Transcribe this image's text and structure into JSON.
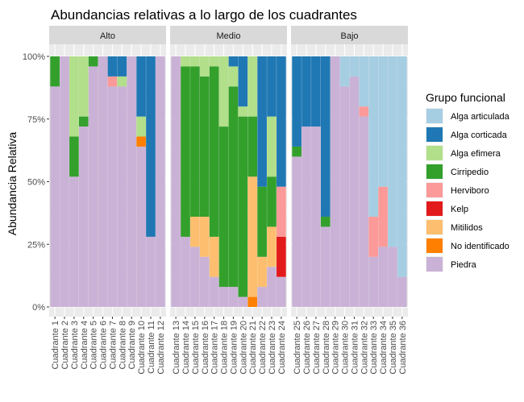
{
  "chart_data": {
    "type": "bar",
    "stacked": "percent",
    "title": "Abundancias relativas a lo largo de los cuadrantes",
    "xlabel": "",
    "ylabel": "Abundancia Relativa",
    "ylim": [
      0,
      1
    ],
    "y_ticks": [
      "0%",
      "25%",
      "50%",
      "75%",
      "100%"
    ],
    "grid": true,
    "legend_position": "right",
    "legend_title": "Grupo funcional",
    "groups": [
      {
        "name": "Alga articulada",
        "color": "#A6CEE3"
      },
      {
        "name": "Alga corticada",
        "color": "#1F78B4"
      },
      {
        "name": "Alga efimera",
        "color": "#B2DF8A"
      },
      {
        "name": "Cirripedio",
        "color": "#33A02C"
      },
      {
        "name": "Herviboro",
        "color": "#FB9A99"
      },
      {
        "name": "Kelp",
        "color": "#E31A1C"
      },
      {
        "name": "Mitilidos",
        "color": "#FDBF6F"
      },
      {
        "name": "No identificado",
        "color": "#FF7F00"
      },
      {
        "name": "Piedra",
        "color": "#CAB2D6"
      }
    ],
    "facets": [
      {
        "label": "Alto",
        "bars": [
          {
            "name": "Cuadrante 1",
            "values": [
              0,
              0,
              0,
              0.12,
              0,
              0,
              0,
              0,
              0.88
            ]
          },
          {
            "name": "Cuadrante 2",
            "values": [
              0,
              0,
              0,
              0,
              0,
              0,
              0,
              0,
              1.0
            ]
          },
          {
            "name": "Cuadrante 3",
            "values": [
              0,
              0,
              0.32,
              0.16,
              0,
              0,
              0,
              0,
              0.52
            ]
          },
          {
            "name": "Cuadrante 4",
            "values": [
              0,
              0,
              0.24,
              0.04,
              0,
              0,
              0,
              0,
              0.72
            ]
          },
          {
            "name": "Cuadrante 5",
            "values": [
              0,
              0,
              0,
              0.04,
              0,
              0,
              0,
              0,
              0.96
            ]
          },
          {
            "name": "Cuadrante 6",
            "values": [
              0,
              0,
              0,
              0,
              0,
              0,
              0,
              0,
              1.0
            ]
          },
          {
            "name": "Cuadrante 7",
            "values": [
              0,
              0.08,
              0,
              0,
              0.04,
              0,
              0,
              0,
              0.88
            ]
          },
          {
            "name": "Cuadrante 8",
            "values": [
              0,
              0.08,
              0.04,
              0,
              0,
              0,
              0,
              0,
              0.88
            ]
          },
          {
            "name": "Cuadrante 9",
            "values": [
              0,
              0,
              0,
              0,
              0,
              0,
              0,
              0,
              1.0
            ]
          },
          {
            "name": "Cuadrante 10",
            "values": [
              0,
              0.24,
              0.08,
              0,
              0,
              0,
              0,
              0.04,
              0.64
            ]
          },
          {
            "name": "Cuadrante 11",
            "values": [
              0,
              0.72,
              0,
              0,
              0,
              0,
              0,
              0,
              0.28
            ]
          },
          {
            "name": "Cuadrante 12",
            "values": [
              0,
              0,
              0,
              0,
              0,
              0,
              0,
              0,
              1.0
            ]
          }
        ]
      },
      {
        "label": "Medio",
        "bars": [
          {
            "name": "Cuadrante 13",
            "values": [
              0,
              0,
              0,
              0,
              0,
              0,
              0,
              0,
              1.0
            ]
          },
          {
            "name": "Cuadrante 14",
            "values": [
              0,
              0,
              0.04,
              0.68,
              0,
              0,
              0,
              0,
              0.28
            ]
          },
          {
            "name": "Cuadrante 15",
            "values": [
              0,
              0,
              0.04,
              0.6,
              0,
              0,
              0.12,
              0,
              0.24
            ]
          },
          {
            "name": "Cuadrante 16",
            "values": [
              0,
              0,
              0.08,
              0.56,
              0,
              0,
              0.16,
              0,
              0.2
            ]
          },
          {
            "name": "Cuadrante 17",
            "values": [
              0,
              0,
              0.04,
              0.68,
              0,
              0,
              0.16,
              0,
              0.12
            ]
          },
          {
            "name": "Cuadrante 18",
            "values": [
              0,
              0,
              0.28,
              0.64,
              0,
              0,
              0,
              0,
              0.08
            ]
          },
          {
            "name": "Cuadrante 19",
            "values": [
              0,
              0.04,
              0.08,
              0.8,
              0,
              0,
              0,
              0,
              0.08
            ]
          },
          {
            "name": "Cuadrante 20",
            "values": [
              0,
              0.2,
              0.04,
              0.72,
              0,
              0,
              0,
              0,
              0.04
            ]
          },
          {
            "name": "Cuadrante 21",
            "values": [
              0,
              0,
              0.24,
              0.24,
              0,
              0,
              0.48,
              0.04,
              0
            ]
          },
          {
            "name": "Cuadrante 22",
            "values": [
              0,
              0.52,
              0,
              0.28,
              0,
              0,
              0.12,
              0,
              0.08
            ]
          },
          {
            "name": "Cuadrante 23",
            "values": [
              0,
              0.24,
              0.24,
              0.2,
              0,
              0,
              0.16,
              0,
              0.16
            ]
          },
          {
            "name": "Cuadrante 24",
            "values": [
              0,
              0.52,
              0,
              0,
              0.2,
              0.16,
              0,
              0,
              0.12
            ]
          }
        ]
      },
      {
        "label": "Bajo",
        "bars": [
          {
            "name": "Cuadrante 25",
            "values": [
              0,
              0.36,
              0,
              0.04,
              0,
              0,
              0,
              0,
              0.6
            ]
          },
          {
            "name": "Cuadrante 26",
            "values": [
              0,
              0.28,
              0,
              0,
              0,
              0,
              0,
              0,
              0.72
            ]
          },
          {
            "name": "Cuadrante 27",
            "values": [
              0,
              0.28,
              0,
              0,
              0,
              0,
              0,
              0,
              0.72
            ]
          },
          {
            "name": "Cuadrante 28",
            "values": [
              0,
              0.64,
              0,
              0.04,
              0,
              0,
              0,
              0,
              0.32
            ]
          },
          {
            "name": "Cuadrante 29",
            "values": [
              0,
              0,
              0,
              0,
              0,
              0,
              0,
              0,
              1.0
            ]
          },
          {
            "name": "Cuadrante 30",
            "values": [
              0.12,
              0,
              0,
              0,
              0,
              0,
              0,
              0,
              0.88
            ]
          },
          {
            "name": "Cuadrante 31",
            "values": [
              0.08,
              0,
              0,
              0,
              0,
              0,
              0,
              0,
              0.92
            ]
          },
          {
            "name": "Cuadrante 32",
            "values": [
              0.2,
              0,
              0,
              0,
              0.04,
              0,
              0,
              0,
              0.76
            ]
          },
          {
            "name": "Cuadrante 33",
            "values": [
              0.64,
              0,
              0,
              0,
              0.16,
              0,
              0,
              0,
              0.2
            ]
          },
          {
            "name": "Cuadrante 34",
            "values": [
              0.52,
              0,
              0,
              0,
              0.24,
              0,
              0,
              0,
              0.24
            ]
          },
          {
            "name": "Cuadrante 35",
            "values": [
              0.76,
              0,
              0,
              0,
              0,
              0,
              0,
              0,
              0.24
            ]
          },
          {
            "name": "Cuadrante 36",
            "values": [
              0.88,
              0,
              0,
              0,
              0,
              0,
              0,
              0,
              0.12
            ]
          }
        ]
      }
    ]
  }
}
